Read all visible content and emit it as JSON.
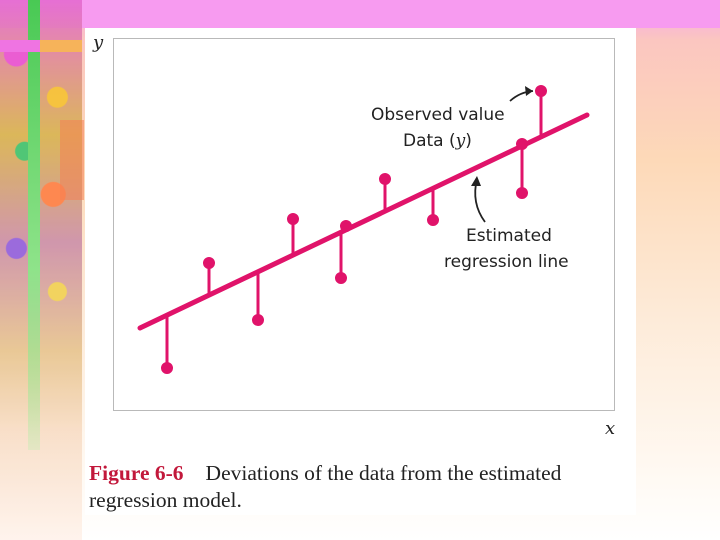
{
  "diagram": {
    "y_axis_label": "y",
    "x_axis_label": "x",
    "annotations": {
      "observed_line1": "Observed value",
      "observed_line2_prefix": "Data (",
      "observed_line2_var": "y",
      "observed_line2_suffix": ")",
      "estimated_line1": "Estimated",
      "estimated_line2": "regression line"
    },
    "colors": {
      "accent": "#e0136a",
      "axis": "#b9b9b9"
    }
  },
  "caption": {
    "figure_label": "Figure 6-6",
    "text": "Deviations of the data from the estimated regression model."
  }
}
